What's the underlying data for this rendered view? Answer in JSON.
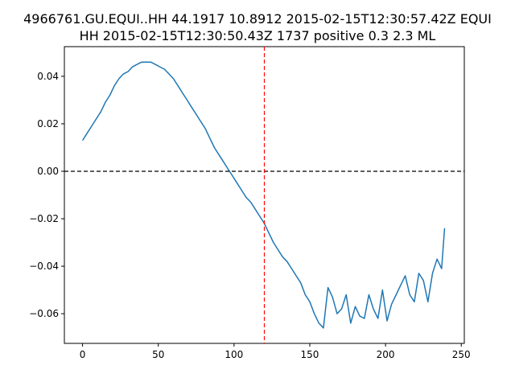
{
  "chart_data": {
    "type": "line",
    "title_lines": [
      "4966761.GU.EQUI..HH 44.1917 10.8912 2015-02-15T12:30:57.42Z EQUI",
      "HH 2015-02-15T12:30:50.43Z 1737 positive 0.3 2.3 ML"
    ],
    "xlabel": "",
    "ylabel": "",
    "xlim": [
      -12,
      252
    ],
    "ylim": [
      -0.0725,
      0.0525
    ],
    "xticks": [
      0,
      50,
      100,
      150,
      200,
      250
    ],
    "xtick_labels": [
      "0",
      "50",
      "100",
      "150",
      "200",
      "250"
    ],
    "yticks": [
      -0.06,
      -0.04,
      -0.02,
      0.0,
      0.02,
      0.04
    ],
    "ytick_labels": [
      "−0.06",
      "−0.04",
      "−0.02",
      "0.00",
      "0.02",
      "0.04"
    ],
    "grid": false,
    "series": [
      {
        "color": "#1f77b4",
        "x": [
          0,
          3,
          6,
          9,
          12,
          15,
          18,
          21,
          24,
          27,
          30,
          33,
          36,
          39,
          42,
          45,
          48,
          51,
          54,
          57,
          60,
          63,
          66,
          69,
          72,
          75,
          78,
          81,
          84,
          87,
          90,
          93,
          96,
          99,
          102,
          105,
          108,
          111,
          114,
          117,
          120,
          123,
          126,
          129,
          132,
          135,
          138,
          141,
          144,
          147,
          150,
          153,
          156,
          159,
          162,
          165,
          168,
          171,
          174,
          177,
          180,
          183,
          186,
          189,
          192,
          195,
          198,
          201,
          204,
          207,
          210,
          213,
          216,
          219,
          222,
          225,
          228,
          231,
          234,
          237,
          239
        ],
        "y": [
          0.013,
          0.016,
          0.019,
          0.022,
          0.025,
          0.029,
          0.032,
          0.036,
          0.039,
          0.041,
          0.042,
          0.044,
          0.045,
          0.046,
          0.046,
          0.046,
          0.045,
          0.044,
          0.043,
          0.041,
          0.039,
          0.036,
          0.033,
          0.03,
          0.027,
          0.024,
          0.021,
          0.018,
          0.014,
          0.01,
          0.007,
          0.004,
          0.001,
          -0.002,
          -0.005,
          -0.008,
          -0.011,
          -0.013,
          -0.016,
          -0.019,
          -0.022,
          -0.026,
          -0.03,
          -0.033,
          -0.036,
          -0.038,
          -0.041,
          -0.044,
          -0.047,
          -0.052,
          -0.055,
          -0.06,
          -0.064,
          -0.066,
          -0.049,
          -0.053,
          -0.06,
          -0.058,
          -0.052,
          -0.064,
          -0.057,
          -0.061,
          -0.062,
          -0.052,
          -0.058,
          -0.062,
          -0.05,
          -0.063,
          -0.056,
          -0.052,
          -0.048,
          -0.044,
          -0.052,
          -0.055,
          -0.043,
          -0.046,
          -0.055,
          -0.043,
          -0.037,
          -0.041,
          -0.024
        ]
      }
    ],
    "reference_lines": [
      {
        "orientation": "horizontal",
        "value": 0.0,
        "color": "#000000",
        "style": "dashed"
      },
      {
        "orientation": "vertical",
        "value": 120,
        "color": "#ff0000",
        "style": "dashed"
      }
    ]
  }
}
